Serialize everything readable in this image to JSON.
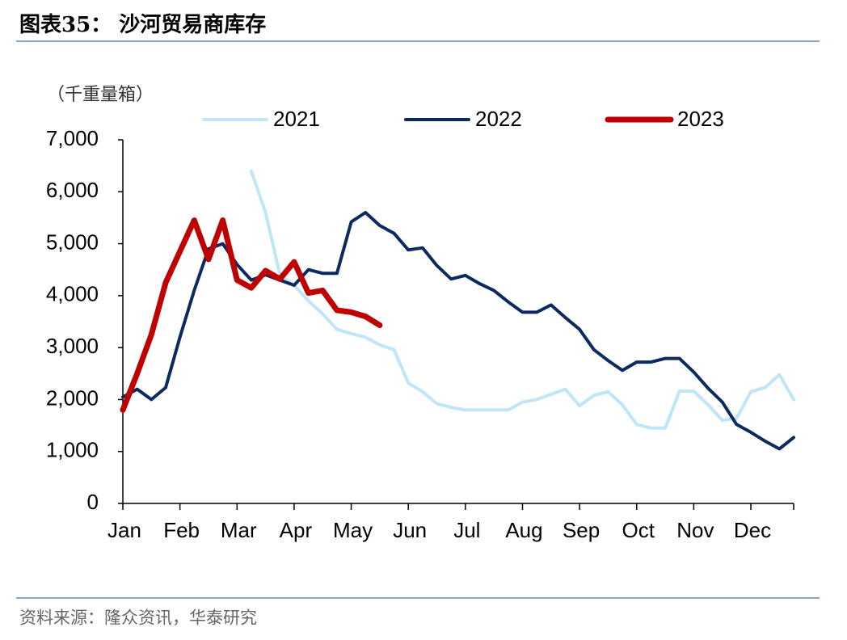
{
  "chart_data": {
    "type": "line",
    "title": "图表35：  沙河贸易商库存",
    "y_label": "（千重量箱）",
    "source": "资料来源：隆众资讯，华泰研究",
    "x": [
      0,
      1,
      2,
      3,
      4,
      5,
      6,
      7,
      8,
      9,
      10,
      11,
      12,
      13,
      14,
      15,
      16,
      17,
      18,
      19,
      20,
      21,
      22,
      23,
      24,
      25,
      26,
      27,
      28,
      29,
      30,
      31,
      32,
      33,
      34,
      35,
      36,
      37,
      38,
      39,
      40,
      41,
      42,
      43,
      44,
      45,
      46,
      47
    ],
    "xlim": [
      0,
      47
    ],
    "xticks": [
      {
        "value": 0,
        "label": "Jan"
      },
      {
        "value": 4,
        "label": "Feb"
      },
      {
        "value": 8,
        "label": "Mar"
      },
      {
        "value": 12,
        "label": "Apr"
      },
      {
        "value": 16,
        "label": "May"
      },
      {
        "value": 20,
        "label": "Jun"
      },
      {
        "value": 24,
        "label": "Jul"
      },
      {
        "value": 28,
        "label": "Aug"
      },
      {
        "value": 32,
        "label": "Sep"
      },
      {
        "value": 36,
        "label": "Oct"
      },
      {
        "value": 40,
        "label": "Nov"
      },
      {
        "value": 44,
        "label": "Dec"
      }
    ],
    "ylim": [
      0,
      7000
    ],
    "yticks": [
      0,
      {
        "value": 1000,
        "label": "1,000"
      },
      {
        "value": 2000,
        "label": "2,000"
      },
      {
        "value": 3000,
        "label": "3,000"
      },
      {
        "value": 4000,
        "label": "4,000"
      },
      {
        "value": 5000,
        "label": "5,000"
      },
      {
        "value": 6000,
        "label": "6,000"
      },
      {
        "value": 7000,
        "label": "7,000"
      }
    ],
    "grid": false,
    "legend": "top",
    "series": [
      {
        "name": "2021",
        "color": "#bfe6f7",
        "values": [
          null,
          null,
          null,
          null,
          null,
          null,
          null,
          null,
          null,
          6400,
          5600,
          4400,
          4200,
          3900,
          3650,
          3350,
          3270,
          3200,
          3050,
          2960,
          2320,
          2150,
          1920,
          1850,
          1800,
          1800,
          1800,
          1800,
          1950,
          2000,
          2100,
          2200,
          1880,
          2080,
          2150,
          1900,
          1520,
          1450,
          1450,
          2160,
          2160,
          1900,
          1600,
          1640,
          2150,
          2230,
          2480,
          2000
        ]
      },
      {
        "name": "2022",
        "color": "#0c2a5f",
        "values": [
          2050,
          2200,
          2000,
          2230,
          3200,
          4100,
          4900,
          5000,
          4600,
          4300,
          4400,
          4300,
          4200,
          4500,
          4430,
          4430,
          5420,
          5600,
          5350,
          5200,
          4880,
          4920,
          4580,
          4320,
          4390,
          4230,
          4100,
          3880,
          3680,
          3680,
          3820,
          3580,
          3350,
          2960,
          2750,
          2560,
          2720,
          2720,
          2790,
          2790,
          2530,
          2220,
          1950,
          1520,
          1370,
          1200,
          1050,
          1270
        ]
      },
      {
        "name": "2023",
        "color": "#c00000",
        "values": [
          1800,
          2500,
          3250,
          4250,
          4850,
          5450,
          4700,
          5450,
          4300,
          4150,
          4480,
          4320,
          4650,
          4050,
          4100,
          3720,
          3680,
          3600,
          3430,
          null,
          null,
          null,
          null,
          null,
          null,
          null,
          null,
          null,
          null,
          null,
          null,
          null,
          null,
          null,
          null,
          null,
          null,
          null,
          null,
          null,
          null,
          null,
          null,
          null,
          null,
          null,
          null,
          null
        ]
      }
    ]
  }
}
